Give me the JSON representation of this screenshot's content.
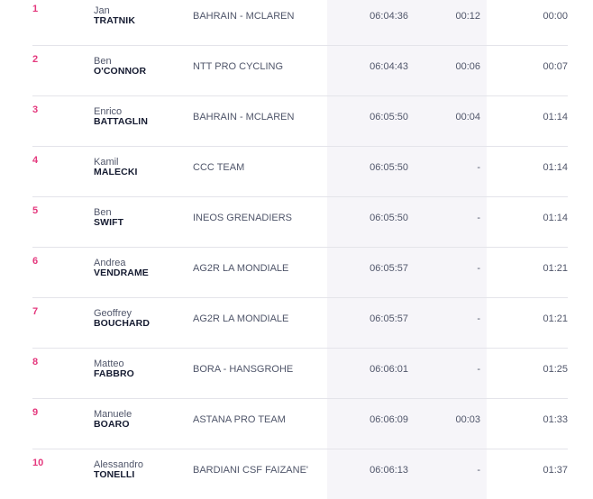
{
  "results": {
    "rows": [
      {
        "rank": "1",
        "first_name": "Jan",
        "last_name": "TRATNIK",
        "team": "BAHRAIN - MCLAREN",
        "time": "06:04:36",
        "bonus": "00:12",
        "gap": "00:00"
      },
      {
        "rank": "2",
        "first_name": "Ben",
        "last_name": "O'CONNOR",
        "team": "NTT PRO CYCLING",
        "time": "06:04:43",
        "bonus": "00:06",
        "gap": "00:07"
      },
      {
        "rank": "3",
        "first_name": "Enrico",
        "last_name": "BATTAGLIN",
        "team": "BAHRAIN - MCLAREN",
        "time": "06:05:50",
        "bonus": "00:04",
        "gap": "01:14"
      },
      {
        "rank": "4",
        "first_name": "Kamil",
        "last_name": "MALECKI",
        "team": "CCC TEAM",
        "time": "06:05:50",
        "bonus": "-",
        "gap": "01:14"
      },
      {
        "rank": "5",
        "first_name": "Ben",
        "last_name": "SWIFT",
        "team": "INEOS GRENADIERS",
        "time": "06:05:50",
        "bonus": "-",
        "gap": "01:14"
      },
      {
        "rank": "6",
        "first_name": "Andrea",
        "last_name": "VENDRAME",
        "team": "AG2R LA MONDIALE",
        "time": "06:05:57",
        "bonus": "-",
        "gap": "01:21"
      },
      {
        "rank": "7",
        "first_name": "Geoffrey",
        "last_name": "BOUCHARD",
        "team": "AG2R LA MONDIALE",
        "time": "06:05:57",
        "bonus": "-",
        "gap": "01:21"
      },
      {
        "rank": "8",
        "first_name": "Matteo",
        "last_name": "FABBRO",
        "team": "BORA - HANSGROHE",
        "time": "06:06:01",
        "bonus": "-",
        "gap": "01:25"
      },
      {
        "rank": "9",
        "first_name": "Manuele",
        "last_name": "BOARO",
        "team": "ASTANA PRO TEAM",
        "time": "06:06:09",
        "bonus": "00:03",
        "gap": "01:33"
      },
      {
        "rank": "10",
        "first_name": "Alessandro",
        "last_name": "TONELLI",
        "team": "BARDIANI CSF FAIZANE'",
        "time": "06:06:13",
        "bonus": "-",
        "gap": "01:37"
      }
    ]
  },
  "colors": {
    "rank": "#e4387d",
    "name_last": "#151b31",
    "text": "#50566a",
    "time_band": "#f6f5f9",
    "divider": "#e4e4ea"
  }
}
